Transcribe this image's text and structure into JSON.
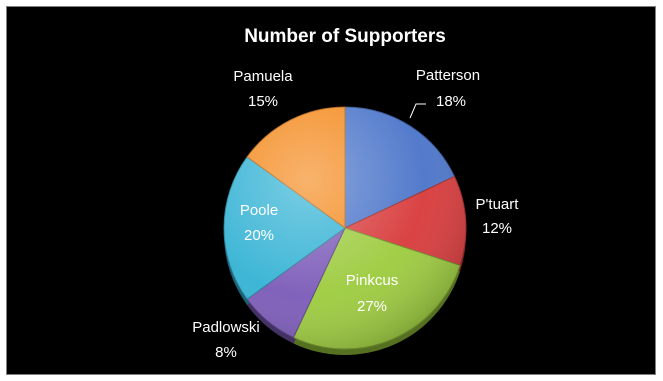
{
  "chart_data": {
    "type": "pie",
    "title": "Number of Supporters",
    "categories": [
      "Patterson",
      "P'tuart",
      "Pinkcus",
      "Padlowski",
      "Poole",
      "Pamuela"
    ],
    "values": [
      18,
      12,
      27,
      8,
      20,
      15
    ],
    "value_labels": [
      "18%",
      "12%",
      "27%",
      "8%",
      "20%",
      "15%"
    ],
    "legend": "none",
    "colors": {
      "Patterson": "#4a74c9",
      "P'tuart": "#d8393a",
      "Pinkcus": "#9ccb3d",
      "Padlowski": "#7b5ab8",
      "Poole": "#33b2d4",
      "Pamuela": "#f48a1e"
    }
  }
}
